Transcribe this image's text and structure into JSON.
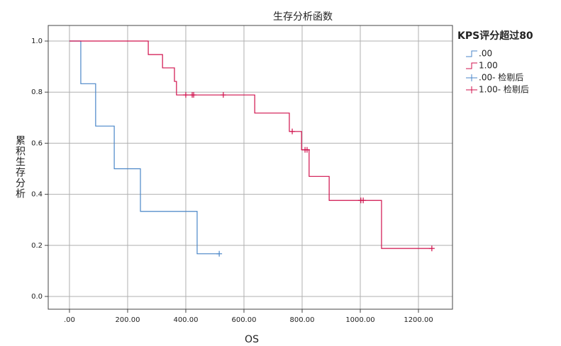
{
  "chart_data": {
    "type": "step",
    "title": "生存分析函数",
    "x_label": "OS",
    "y_label": "累积生存分析",
    "legend_title": "KPS评分超过80",
    "legend": "right",
    "grid": true,
    "xlim": [
      -73,
      1317
    ],
    "ylim": [
      -0.05,
      1.061
    ],
    "xticks": [
      {
        "value": 0,
        "label": ".00"
      },
      {
        "value": 200,
        "label": "200.00"
      },
      {
        "value": 400,
        "label": "400.00"
      },
      {
        "value": 600,
        "label": "600.00"
      },
      {
        "value": 800,
        "label": "800.00"
      },
      {
        "value": 1000,
        "label": "1000.00"
      },
      {
        "value": 1200,
        "label": "1200.00"
      }
    ],
    "yticks": [
      {
        "value": 0,
        "label": "0.0"
      },
      {
        "value": 0.2,
        "label": "0.2"
      },
      {
        "value": 0.4,
        "label": "0.4"
      },
      {
        "value": 0.6,
        "label": "0.6"
      },
      {
        "value": 0.8,
        "label": "0.8"
      },
      {
        "value": 1,
        "label": "1.0"
      }
    ],
    "series": [
      {
        "name": ".00",
        "color": "#4a86c8",
        "censored": false,
        "x": [
          0,
          39,
          90,
          154,
          244,
          439,
          515
        ],
        "values": [
          1,
          0.833,
          0.667,
          0.5,
          0.333,
          0.167,
          0.167
        ]
      },
      {
        "name": "1.00",
        "color": "#d0104c",
        "censored": false,
        "x": [
          0,
          271,
          320,
          361,
          368,
          637,
          756,
          798,
          824,
          893,
          1073,
          1246
        ],
        "values": [
          1,
          0.947,
          0.895,
          0.842,
          0.789,
          0.718,
          0.646,
          0.574,
          0.47,
          0.376,
          0.188,
          0.188
        ]
      },
      {
        "name": ".00- 检剔后",
        "color": "#4a86c8",
        "censored": true,
        "x": [
          515
        ],
        "values": [
          0.167
        ]
      },
      {
        "name": "1.00- 检剔后",
        "color": "#d0104c",
        "censored": true,
        "x": [
          400,
          422,
          427,
          529,
          766,
          810,
          817,
          1002,
          1010,
          1246
        ],
        "values": [
          0.789,
          0.789,
          0.789,
          0.789,
          0.646,
          0.574,
          0.574,
          0.376,
          0.376,
          0.188
        ]
      }
    ]
  }
}
